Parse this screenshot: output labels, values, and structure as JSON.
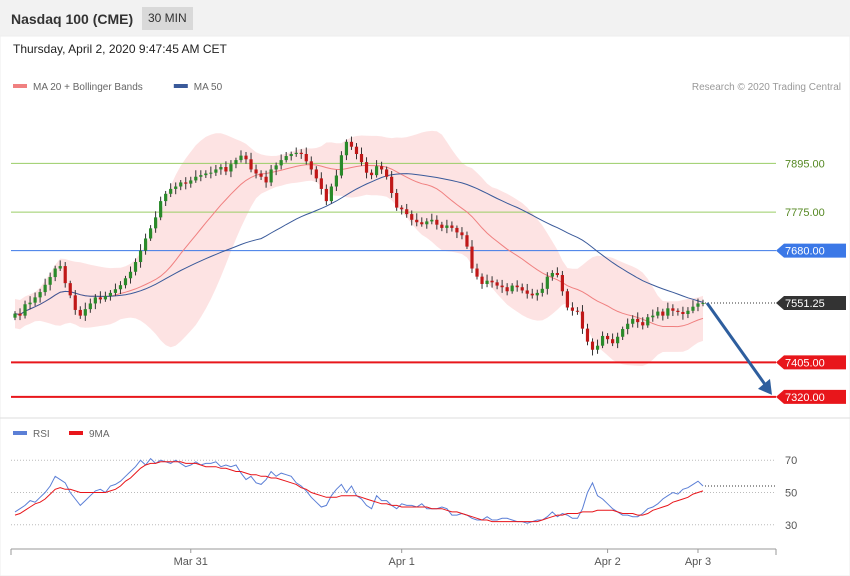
{
  "header": {
    "title": "Nasdaq 100 (CME)",
    "timeframe": "30 MIN",
    "timestamp": "Thursday, April 2, 2020 9:47:45 AM CET"
  },
  "chart_data": [
    {
      "type": "candlestick",
      "legend": [
        {
          "label": "MA 20 + Bollinger Bands",
          "color": "#f08080"
        },
        {
          "label": "MA 50",
          "color": "#3a5a9a"
        }
      ],
      "legend_position": "top-left",
      "credit": "Research © 2020 Trading Central",
      "ylim": [
        7263,
        8051
      ],
      "levels": [
        {
          "value": 7895,
          "label": "7895.00",
          "kind": "resistance",
          "color": "#9acd66"
        },
        {
          "value": 7775,
          "label": "7775.00",
          "kind": "resistance",
          "color": "#9acd66"
        },
        {
          "value": 7680,
          "label": "7680.00",
          "kind": "pivot",
          "color": "#3b78e7"
        },
        {
          "value": 7551.25,
          "label": "7551.25",
          "kind": "last",
          "color": "#333333"
        },
        {
          "value": 7405,
          "label": "7405.00",
          "kind": "support",
          "color": "#e8161b"
        },
        {
          "value": 7320,
          "label": "7320.00",
          "kind": "support",
          "color": "#e8161b"
        }
      ],
      "forecast_arrow": {
        "from": 7551.25,
        "to": 7320,
        "color": "#2e5e9e"
      },
      "x_ticks": [
        "Mar 31",
        "Apr 1",
        "Apr 2",
        "Apr 3"
      ],
      "series": [
        {
          "name": "Nasdaq 100",
          "close": [
            7525,
            7520,
            7548,
            7552,
            7565,
            7578,
            7596,
            7615,
            7636,
            7642,
            7600,
            7570,
            7534,
            7520,
            7536,
            7550,
            7565,
            7560,
            7568,
            7576,
            7585,
            7595,
            7612,
            7628,
            7652,
            7680,
            7710,
            7735,
            7762,
            7802,
            7820,
            7832,
            7838,
            7848,
            7845,
            7853,
            7862,
            7866,
            7870,
            7872,
            7880,
            7886,
            7875,
            7893,
            7903,
            7914,
            7905,
            7880,
            7870,
            7862,
            7848,
            7880,
            7890,
            7903,
            7913,
            7918,
            7921,
            7918,
            7900,
            7880,
            7858,
            7832,
            7802,
            7838,
            7865,
            7915,
            7948,
            7936,
            7918,
            7898,
            7872,
            7866,
            7888,
            7880,
            7862,
            7822,
            7786,
            7782,
            7770,
            7756,
            7750,
            7745,
            7752,
            7756,
            7744,
            7736,
            7742,
            7736,
            7725,
            7718,
            7690,
            7636,
            7616,
            7598,
            7606,
            7602,
            7594,
            7590,
            7580,
            7594,
            7590,
            7582,
            7574,
            7570,
            7576,
            7586,
            7616,
            7625,
            7620,
            7580,
            7540,
            7532,
            7530,
            7488,
            7456,
            7436,
            7446,
            7470,
            7462,
            7452,
            7468,
            7487,
            7500,
            7512,
            7504,
            7496,
            7516,
            7520,
            7530,
            7520,
            7538,
            7532,
            7529,
            7524,
            7532,
            7542,
            7550,
            7551.25
          ]
        }
      ]
    },
    {
      "type": "line",
      "legend": [
        {
          "label": "RSI",
          "color": "#5b7fd6"
        },
        {
          "label": "9MA",
          "color": "#e8161b"
        }
      ],
      "legend_position": "top-left",
      "ylim": [
        17.5,
        82.5
      ],
      "y_ticks": [
        70,
        50,
        30
      ],
      "series": [
        {
          "name": "RSI",
          "values": [
            38,
            40,
            42,
            45,
            44,
            47,
            50,
            54,
            60,
            58,
            56,
            50,
            46,
            42,
            45,
            48,
            51,
            52,
            50,
            54,
            55,
            57,
            60,
            63,
            66,
            70,
            67,
            71,
            68,
            70,
            69,
            68,
            70,
            68,
            66,
            67,
            69,
            67,
            68,
            68,
            69,
            66,
            67,
            66,
            67,
            62,
            58,
            60,
            56,
            55,
            58,
            63,
            60,
            62,
            61,
            60,
            56,
            54,
            51,
            47,
            44,
            41,
            42,
            48,
            52,
            55,
            50,
            54,
            48,
            46,
            42,
            40,
            48,
            45,
            45,
            42,
            40,
            43,
            42,
            42,
            41,
            43,
            40,
            40,
            40,
            41,
            40,
            36,
            36,
            37,
            36,
            34,
            33,
            33,
            35,
            33,
            33,
            34,
            34,
            33,
            32,
            32,
            31,
            32,
            33,
            33,
            35,
            38,
            35,
            37,
            36,
            34,
            34,
            40,
            50,
            56,
            48,
            46,
            43,
            40,
            38,
            36,
            36,
            35,
            35,
            37,
            40,
            41,
            43,
            46,
            48,
            50,
            49,
            52,
            53,
            55,
            57,
            54
          ]
        },
        {
          "name": "9MA",
          "values": [
            36,
            37,
            39,
            41,
            43,
            44,
            46,
            49,
            52,
            53,
            52,
            52,
            51,
            50,
            50,
            50,
            50,
            50,
            50,
            51,
            52,
            54,
            57,
            59,
            62,
            65,
            67,
            68,
            68,
            69,
            69,
            69,
            69,
            69,
            68,
            68,
            68,
            67,
            66,
            66,
            66,
            65,
            65,
            64,
            63,
            63,
            62,
            61,
            61,
            60,
            60,
            59,
            59,
            58,
            57,
            56,
            55,
            53,
            52,
            50,
            49,
            48,
            47,
            47,
            47,
            48,
            48,
            48,
            48,
            47,
            46,
            45,
            44,
            43,
            43,
            42,
            42,
            41,
            41,
            41,
            41,
            41,
            41,
            40,
            40,
            40,
            39,
            38,
            38,
            37,
            36,
            35,
            34,
            33,
            33,
            32,
            32,
            32,
            32,
            32,
            32,
            32,
            32,
            32,
            32,
            33,
            34,
            35,
            36,
            36,
            37,
            37,
            37,
            38,
            38,
            38,
            39,
            39,
            39,
            39,
            38,
            37,
            37,
            37,
            36,
            36,
            37,
            39,
            40,
            41,
            42,
            44,
            45,
            46,
            47,
            49,
            50,
            51
          ]
        }
      ]
    }
  ]
}
